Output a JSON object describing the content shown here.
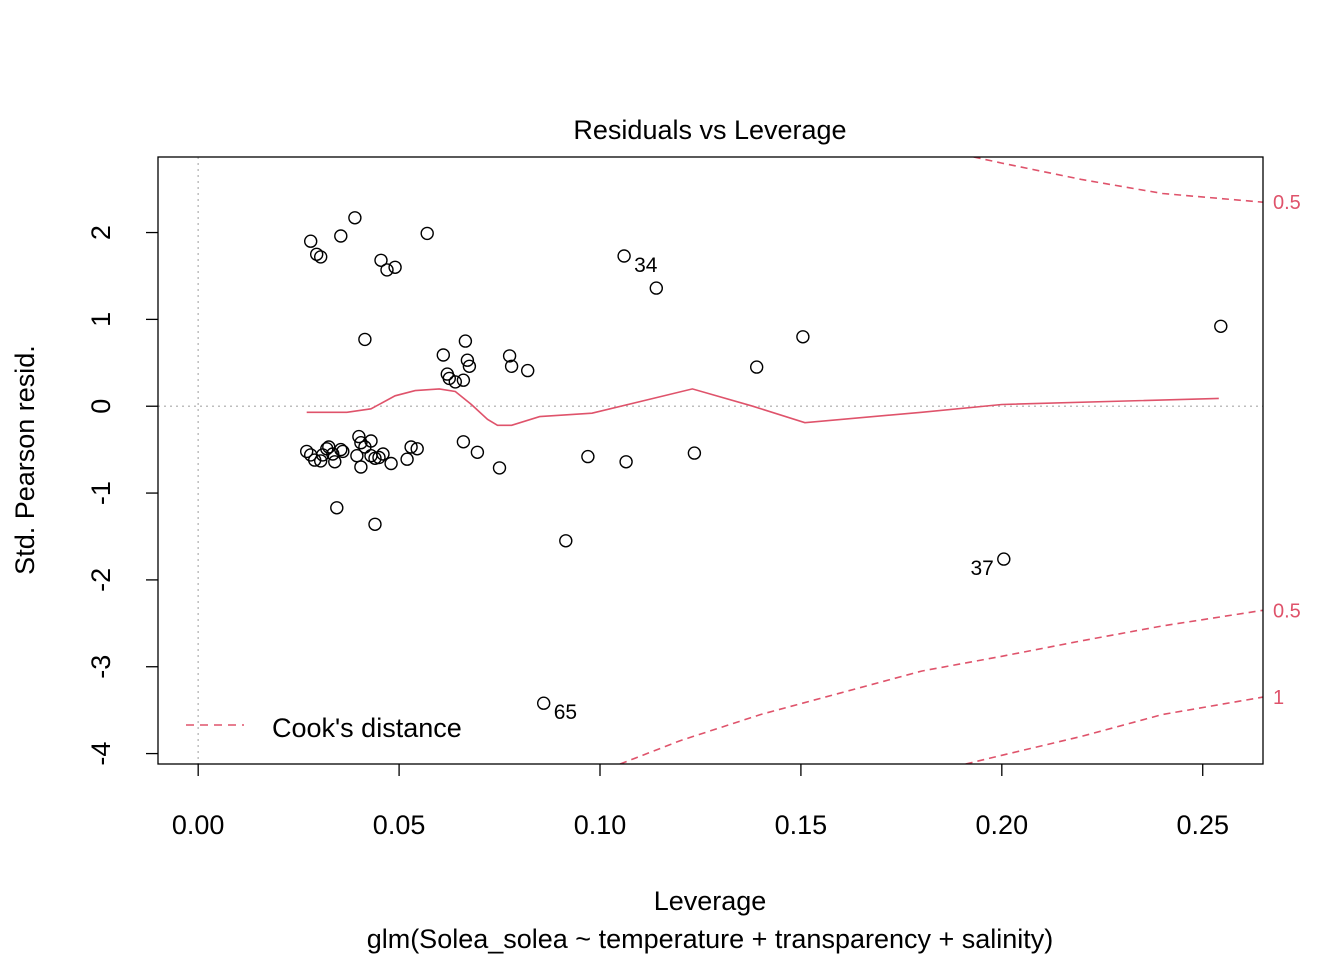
{
  "chart_data": {
    "type": "scatter",
    "title": "Residuals vs Leverage",
    "xlabel": "Leverage",
    "subtitle": "glm(Solea_solea ~ temperature + transparency + salinity)",
    "ylabel": "Std. Pearson resid.",
    "xlim": [
      -0.01,
      0.265
    ],
    "ylim": [
      -4.12,
      2.87
    ],
    "x_ticks": [
      "0.00",
      "0.05",
      "0.10",
      "0.15",
      "0.20",
      "0.25"
    ],
    "x_tick_values": [
      0,
      0.05,
      0.1,
      0.15,
      0.2,
      0.25
    ],
    "y_ticks": [
      "-4",
      "-3",
      "-2",
      "-1",
      "0",
      "1",
      "2"
    ],
    "y_tick_values": [
      -4,
      -3,
      -2,
      -1,
      0,
      1,
      2
    ],
    "reference_lines": {
      "h": 0,
      "v": 0
    },
    "points": [
      [
        0.028,
        1.9
      ],
      [
        0.0295,
        1.75
      ],
      [
        0.0305,
        1.72
      ],
      [
        0.0355,
        1.96
      ],
      [
        0.039,
        2.17
      ],
      [
        0.0455,
        1.68
      ],
      [
        0.047,
        1.57
      ],
      [
        0.049,
        1.6
      ],
      [
        0.057,
        1.99
      ],
      [
        0.106,
        1.73
      ],
      [
        0.114,
        1.36
      ],
      [
        0.0415,
        0.77
      ],
      [
        0.0665,
        0.75
      ],
      [
        0.061,
        0.59
      ],
      [
        0.067,
        0.53
      ],
      [
        0.0675,
        0.46
      ],
      [
        0.062,
        0.37
      ],
      [
        0.0625,
        0.32
      ],
      [
        0.064,
        0.28
      ],
      [
        0.066,
        0.3
      ],
      [
        0.0775,
        0.58
      ],
      [
        0.078,
        0.46
      ],
      [
        0.082,
        0.41
      ],
      [
        0.139,
        0.45
      ],
      [
        0.1505,
        0.8
      ],
      [
        0.2545,
        0.92
      ],
      [
        0.027,
        -0.52
      ],
      [
        0.028,
        -0.56
      ],
      [
        0.029,
        -0.62
      ],
      [
        0.0305,
        -0.63
      ],
      [
        0.031,
        -0.56
      ],
      [
        0.032,
        -0.49
      ],
      [
        0.0325,
        -0.47
      ],
      [
        0.0335,
        -0.55
      ],
      [
        0.034,
        -0.64
      ],
      [
        0.0355,
        -0.5
      ],
      [
        0.036,
        -0.52
      ],
      [
        0.0395,
        -0.57
      ],
      [
        0.04,
        -0.35
      ],
      [
        0.0405,
        -0.42
      ],
      [
        0.0405,
        -0.7
      ],
      [
        0.0415,
        -0.47
      ],
      [
        0.043,
        -0.4
      ],
      [
        0.043,
        -0.57
      ],
      [
        0.044,
        -0.6
      ],
      [
        0.045,
        -0.59
      ],
      [
        0.046,
        -0.55
      ],
      [
        0.048,
        -0.66
      ],
      [
        0.052,
        -0.61
      ],
      [
        0.053,
        -0.47
      ],
      [
        0.0545,
        -0.49
      ],
      [
        0.066,
        -0.41
      ],
      [
        0.0695,
        -0.53
      ],
      [
        0.075,
        -0.71
      ],
      [
        0.0345,
        -1.17
      ],
      [
        0.044,
        -1.36
      ],
      [
        0.0915,
        -1.55
      ],
      [
        0.097,
        -0.58
      ],
      [
        0.1065,
        -0.64
      ],
      [
        0.1235,
        -0.54
      ],
      [
        0.2005,
        -1.76
      ],
      [
        0.086,
        -3.42
      ]
    ],
    "point_labels": [
      {
        "text": "34",
        "x": 0.106,
        "y": 1.73,
        "side": "right"
      },
      {
        "text": "37",
        "x": 0.2005,
        "y": -1.76,
        "side": "left"
      },
      {
        "text": "65",
        "x": 0.086,
        "y": -3.42,
        "side": "right"
      }
    ],
    "smooth_line": {
      "x": [
        0.027,
        0.037,
        0.043,
        0.049,
        0.054,
        0.06,
        0.064,
        0.068,
        0.072,
        0.0745,
        0.078,
        0.085,
        0.098,
        0.123,
        0.138,
        0.151,
        0.18,
        0.2,
        0.254
      ],
      "y": [
        -0.07,
        -0.07,
        -0.03,
        0.12,
        0.18,
        0.2,
        0.17,
        0.02,
        -0.15,
        -0.22,
        -0.22,
        -0.12,
        -0.08,
        0.2,
        0.0,
        -0.19,
        -0.07,
        0.02,
        0.09
      ]
    },
    "cooks_contours": [
      {
        "label": "0.5",
        "sign": 1,
        "x": [
          0.193,
          0.2,
          0.22,
          0.24,
          0.265
        ],
        "y": [
          2.87,
          2.8,
          2.61,
          2.45,
          2.35
        ]
      },
      {
        "label": "0.5",
        "sign": -1,
        "x": [
          0.105,
          0.12,
          0.14,
          0.16,
          0.18,
          0.2,
          0.22,
          0.24,
          0.265
        ],
        "y": [
          -4.12,
          -3.85,
          -3.55,
          -3.3,
          -3.05,
          -2.88,
          -2.7,
          -2.53,
          -2.35
        ]
      },
      {
        "label": "1",
        "sign": -1,
        "x": [
          0.191,
          0.2,
          0.22,
          0.24,
          0.265
        ],
        "y": [
          -4.12,
          -4.02,
          -3.8,
          -3.55,
          -3.35
        ]
      }
    ],
    "legend": {
      "text": "Cook's distance",
      "position": "bottom-left"
    },
    "colors": {
      "points": "#000000",
      "smooth": "#DF536B",
      "cooks": "#DF536B",
      "reference": "#BEBEBE",
      "axis": "#000000"
    }
  }
}
